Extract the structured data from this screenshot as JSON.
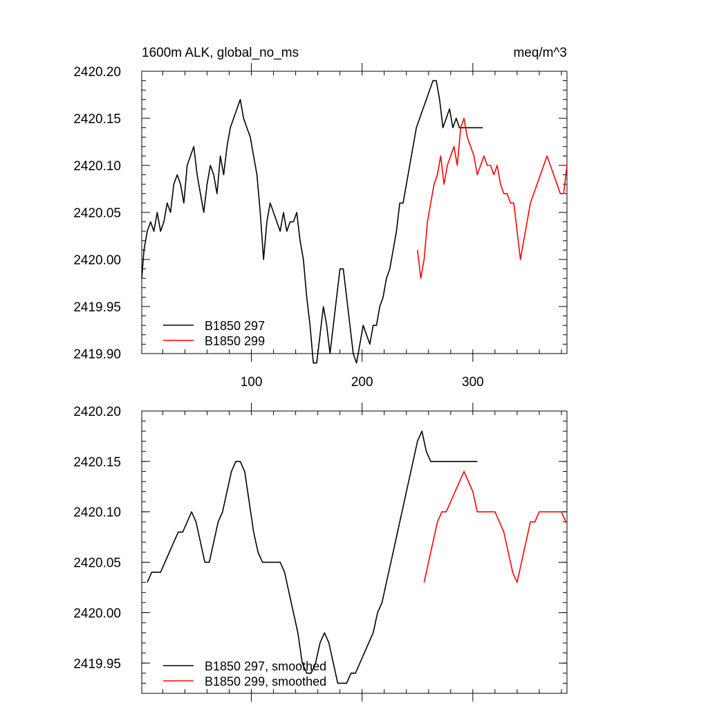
{
  "chart_data": [
    {
      "type": "line",
      "title_left": "1600m ALK, global_no_ms",
      "title_right": "meq/m^3",
      "xlim": [
        1,
        385
      ],
      "ylim": [
        2419.9,
        2420.2
      ],
      "yticks": [
        "2420.20",
        "2420.15",
        "2420.10",
        "2420.05",
        "2420.00",
        "2419.95",
        "2419.90"
      ],
      "yticks_values": [
        2420.2,
        2420.15,
        2420.1,
        2420.05,
        2420.0,
        2419.95,
        2419.9
      ],
      "xticks": [
        "100",
        "200",
        "300"
      ],
      "xticks_values": [
        100,
        200,
        300
      ],
      "grid": false,
      "legend_position": "bottom-left",
      "series": [
        {
          "name": "B1850 297",
          "color": "#000000",
          "x": [
            1,
            3,
            6,
            9,
            12,
            15,
            18,
            21,
            24,
            27,
            30,
            33,
            36,
            39,
            42,
            45,
            48,
            51,
            54,
            57,
            60,
            63,
            66,
            69,
            72,
            75,
            78,
            81,
            84,
            87,
            90,
            93,
            96,
            99,
            102,
            105,
            108,
            111,
            114,
            117,
            120,
            123,
            126,
            129,
            132,
            135,
            138,
            141,
            144,
            147,
            150,
            153,
            156,
            159,
            162,
            165,
            168,
            171,
            174,
            177,
            180,
            183,
            186,
            189,
            192,
            195,
            198,
            201,
            204,
            207,
            210,
            213,
            216,
            219,
            222,
            225,
            228,
            231,
            234,
            237,
            240,
            243,
            246,
            249,
            252,
            255,
            258,
            261,
            264,
            267,
            270,
            273,
            276,
            279,
            282,
            285,
            288,
            291,
            294,
            297,
            300,
            303,
            306,
            309
          ],
          "y": [
            2419.98,
            2420.01,
            2420.03,
            2420.04,
            2420.03,
            2420.05,
            2420.03,
            2420.04,
            2420.06,
            2420.05,
            2420.08,
            2420.09,
            2420.08,
            2420.06,
            2420.1,
            2420.11,
            2420.12,
            2420.09,
            2420.07,
            2420.05,
            2420.08,
            2420.1,
            2420.09,
            2420.07,
            2420.11,
            2420.09,
            2420.12,
            2420.14,
            2420.15,
            2420.16,
            2420.17,
            2420.15,
            2420.14,
            2420.13,
            2420.11,
            2420.09,
            2420.05,
            2420.0,
            2420.04,
            2420.06,
            2420.05,
            2420.04,
            2420.03,
            2420.05,
            2420.03,
            2420.04,
            2420.04,
            2420.05,
            2420.02,
            2420.0,
            2419.96,
            2419.93,
            2419.89,
            2419.89,
            2419.92,
            2419.95,
            2419.93,
            2419.9,
            2419.93,
            2419.96,
            2419.99,
            2419.99,
            2419.96,
            2419.93,
            2419.9,
            2419.89,
            2419.91,
            2419.93,
            2419.92,
            2419.91,
            2419.93,
            2419.93,
            2419.95,
            2419.96,
            2419.98,
            2419.99,
            2420.01,
            2420.03,
            2420.06,
            2420.06,
            2420.08,
            2420.1,
            2420.12,
            2420.14,
            2420.15,
            2420.16,
            2420.17,
            2420.18,
            2420.19,
            2420.19,
            2420.17,
            2420.14,
            2420.15,
            2420.16,
            2420.14,
            2420.15,
            2420.14,
            2420.14,
            2420.14,
            2420.14,
            2420.14,
            2420.14,
            2420.14,
            2420.14
          ]
        },
        {
          "name": "B1850 299",
          "color": "#ff0000",
          "x": [
            250,
            253,
            256,
            259,
            262,
            265,
            268,
            271,
            274,
            277,
            280,
            283,
            286,
            289,
            292,
            295,
            298,
            301,
            304,
            307,
            310,
            313,
            316,
            319,
            322,
            325,
            328,
            331,
            334,
            337,
            340,
            343,
            346,
            349,
            352,
            355,
            358,
            361,
            364,
            367,
            370,
            373,
            376,
            379,
            382,
            385
          ],
          "y": [
            2420.01,
            2419.98,
            2420.0,
            2420.04,
            2420.06,
            2420.08,
            2420.09,
            2420.11,
            2420.08,
            2420.1,
            2420.11,
            2420.12,
            2420.1,
            2420.14,
            2420.15,
            2420.13,
            2420.12,
            2420.11,
            2420.09,
            2420.1,
            2420.11,
            2420.1,
            2420.1,
            2420.09,
            2420.1,
            2420.08,
            2420.07,
            2420.07,
            2420.06,
            2420.06,
            2420.03,
            2420.0,
            2420.02,
            2420.04,
            2420.06,
            2420.07,
            2420.08,
            2420.09,
            2420.1,
            2420.11,
            2420.1,
            2420.09,
            2420.08,
            2420.07,
            2420.07,
            2420.1
          ]
        }
      ]
    },
    {
      "type": "line",
      "xlim": [
        1,
        385
      ],
      "ylim": [
        2419.92,
        2420.2
      ],
      "yticks": [
        "2420.20",
        "2420.15",
        "2420.10",
        "2420.05",
        "2420.00",
        "2419.95"
      ],
      "yticks_values": [
        2420.2,
        2420.15,
        2420.1,
        2420.05,
        2420.0,
        2419.95
      ],
      "xticks_values": [
        100,
        200,
        300
      ],
      "grid": false,
      "legend_position": "bottom-left",
      "series": [
        {
          "name": "B1850 297, smoothed",
          "color": "#000000",
          "x": [
            6,
            10,
            14,
            18,
            22,
            26,
            30,
            34,
            38,
            42,
            46,
            50,
            54,
            58,
            62,
            66,
            70,
            74,
            78,
            82,
            86,
            90,
            94,
            98,
            102,
            106,
            110,
            114,
            118,
            122,
            126,
            130,
            134,
            138,
            142,
            146,
            150,
            154,
            158,
            162,
            166,
            170,
            174,
            178,
            182,
            186,
            190,
            194,
            198,
            202,
            206,
            210,
            214,
            218,
            222,
            226,
            230,
            234,
            238,
            242,
            246,
            250,
            254,
            258,
            262,
            266,
            270,
            274,
            278,
            282,
            286,
            290,
            294,
            298,
            302,
            304
          ],
          "y": [
            2420.03,
            2420.04,
            2420.04,
            2420.04,
            2420.05,
            2420.06,
            2420.07,
            2420.08,
            2420.08,
            2420.09,
            2420.1,
            2420.09,
            2420.07,
            2420.05,
            2420.05,
            2420.07,
            2420.09,
            2420.1,
            2420.12,
            2420.14,
            2420.15,
            2420.15,
            2420.14,
            2420.11,
            2420.08,
            2420.06,
            2420.05,
            2420.05,
            2420.05,
            2420.05,
            2420.05,
            2420.04,
            2420.02,
            2420.0,
            2419.98,
            2419.95,
            2419.94,
            2419.94,
            2419.95,
            2419.97,
            2419.98,
            2419.97,
            2419.95,
            2419.93,
            2419.93,
            2419.93,
            2419.94,
            2419.94,
            2419.95,
            2419.96,
            2419.97,
            2419.98,
            2420.0,
            2420.01,
            2420.03,
            2420.05,
            2420.07,
            2420.09,
            2420.11,
            2420.13,
            2420.15,
            2420.17,
            2420.18,
            2420.16,
            2420.15,
            2420.15,
            2420.15,
            2420.15,
            2420.15,
            2420.15,
            2420.15,
            2420.15,
            2420.15,
            2420.15,
            2420.15,
            2420.15
          ]
        },
        {
          "name": "B1850 299, smoothed",
          "color": "#ff0000",
          "x": [
            256,
            260,
            264,
            268,
            272,
            276,
            280,
            284,
            288,
            292,
            296,
            300,
            304,
            308,
            312,
            316,
            320,
            324,
            328,
            332,
            336,
            340,
            344,
            348,
            352,
            356,
            360,
            364,
            368,
            372,
            376,
            380,
            384
          ],
          "y": [
            2420.03,
            2420.05,
            2420.07,
            2420.09,
            2420.1,
            2420.1,
            2420.11,
            2420.12,
            2420.13,
            2420.14,
            2420.13,
            2420.12,
            2420.1,
            2420.1,
            2420.1,
            2420.1,
            2420.1,
            2420.09,
            2420.08,
            2420.06,
            2420.04,
            2420.03,
            2420.05,
            2420.07,
            2420.09,
            2420.09,
            2420.1,
            2420.1,
            2420.1,
            2420.1,
            2420.1,
            2420.1,
            2420.09
          ]
        }
      ]
    }
  ]
}
